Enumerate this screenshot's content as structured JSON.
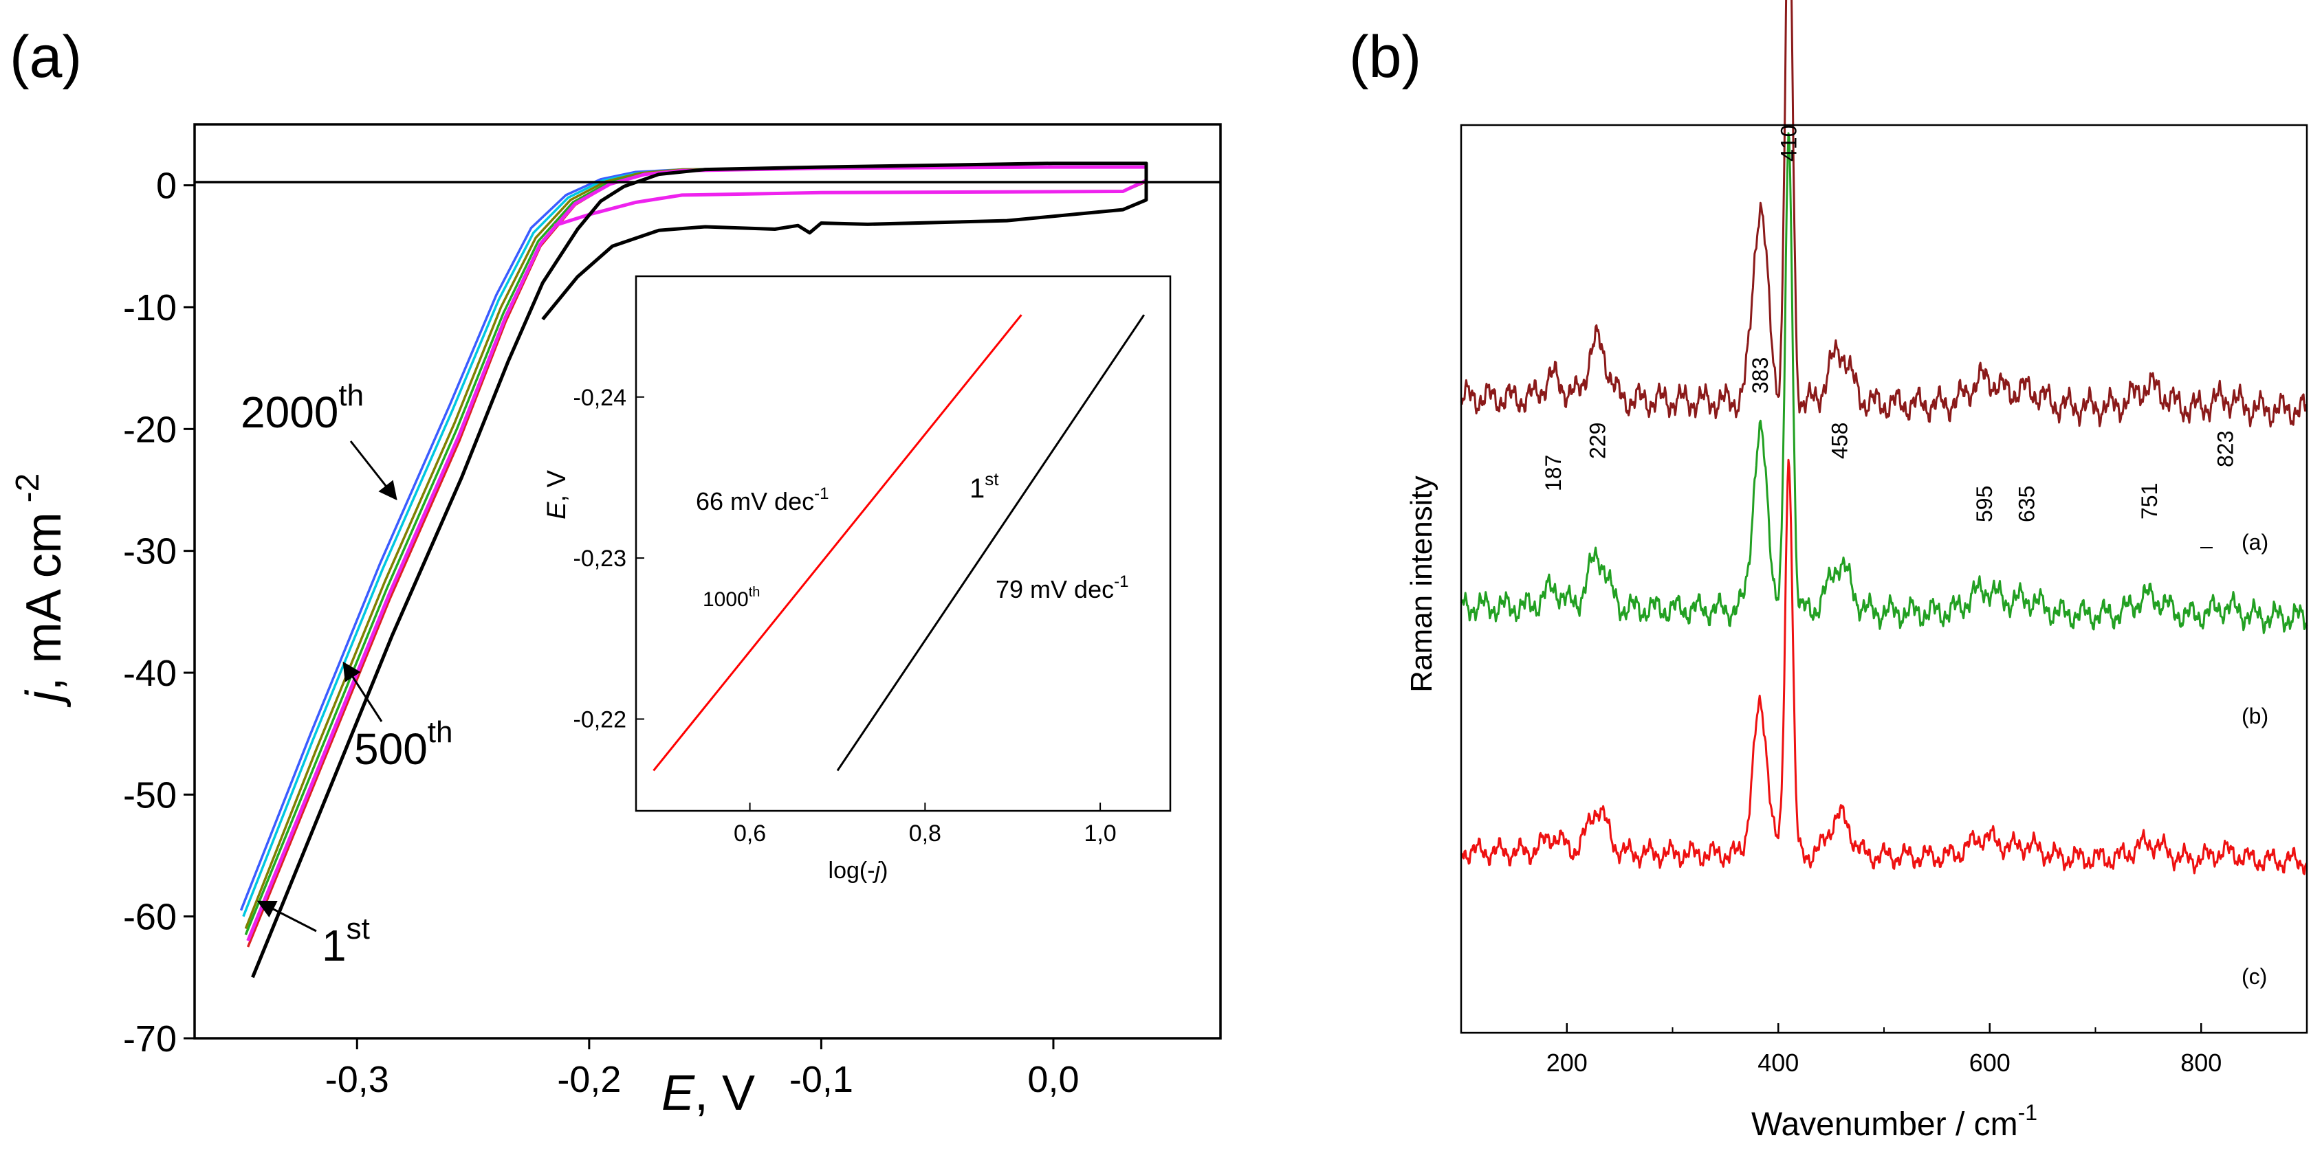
{
  "panels": {
    "a_label": "(a)",
    "b_label": "(b)"
  },
  "chart_data": [
    {
      "panel": "(a)",
      "type": "line",
      "title": "",
      "xlabel_italic": "E",
      "xlabel_rest": ", V",
      "ylabel_italic": "j",
      "ylabel_rest": ", mA cm",
      "ylabel_sup": "-2",
      "xlim": [
        -0.37,
        0.072
      ],
      "ylim": [
        -70,
        5
      ],
      "xticks": [
        -0.3,
        -0.2,
        -0.1,
        0.0
      ],
      "xtick_labels": [
        "-0,3",
        "-0,2",
        "-0,1",
        "0,0"
      ],
      "yticks": [
        0,
        -10,
        -20,
        -30,
        -40,
        -50,
        -60,
        -70
      ],
      "ytick_labels": [
        "0",
        "-10",
        "-20",
        "-30",
        "-40",
        "-50",
        "-60",
        "-70"
      ],
      "zero_line": 0,
      "cycle_labels": [
        {
          "base": "2000",
          "sup": "th"
        },
        {
          "base": "500",
          "sup": "th"
        },
        {
          "base": "1",
          "sup": "st"
        }
      ],
      "series": [
        {
          "name": "blue",
          "color": "#3a5cff",
          "stroke": 3.5,
          "cathodic": [
            [
              -0.35,
              -59.5
            ],
            [
              -0.32,
              -45
            ],
            [
              -0.29,
              -31
            ],
            [
              -0.26,
              -18
            ],
            [
              -0.24,
              -9
            ],
            [
              -0.225,
              -3.5
            ],
            [
              -0.21,
              -0.8
            ],
            [
              -0.195,
              0.5
            ],
            [
              -0.18,
              1.1
            ],
            [
              -0.16,
              1.3
            ],
            [
              -0.1,
              1.4
            ],
            [
              0.0,
              1.5
            ],
            [
              0.04,
              1.5
            ]
          ],
          "return": [
            [
              0.04,
              0.3
            ],
            [
              0.03,
              -0.5
            ],
            [
              -0.1,
              -0.6
            ],
            [
              -0.16,
              -0.8
            ],
            [
              -0.18,
              -1.4
            ],
            [
              -0.2,
              -2.4
            ],
            [
              -0.215,
              -3.3
            ]
          ]
        },
        {
          "name": "cyan",
          "color": "#00c8e0",
          "stroke": 3.5,
          "cathodic": [
            [
              -0.349,
              -60
            ],
            [
              -0.319,
              -45.5
            ],
            [
              -0.289,
              -31.5
            ],
            [
              -0.259,
              -18.5
            ],
            [
              -0.239,
              -9.4
            ],
            [
              -0.224,
              -3.9
            ],
            [
              -0.209,
              -1
            ],
            [
              -0.194,
              0.4
            ],
            [
              -0.179,
              1
            ],
            [
              -0.16,
              1.3
            ],
            [
              -0.1,
              1.4
            ],
            [
              0.0,
              1.5
            ],
            [
              0.04,
              1.5
            ]
          ],
          "return": [
            [
              0.04,
              0.3
            ],
            [
              0.03,
              -0.5
            ],
            [
              -0.1,
              -0.6
            ],
            [
              -0.16,
              -0.8
            ],
            [
              -0.18,
              -1.4
            ],
            [
              -0.2,
              -2.4
            ],
            [
              -0.215,
              -3.3
            ]
          ]
        },
        {
          "name": "olive",
          "color": "#808000",
          "stroke": 3.5,
          "cathodic": [
            [
              -0.348,
              -61
            ],
            [
              -0.318,
              -46.5
            ],
            [
              -0.288,
              -32.5
            ],
            [
              -0.258,
              -19.5
            ],
            [
              -0.238,
              -10
            ],
            [
              -0.223,
              -4.3
            ],
            [
              -0.208,
              -1.2
            ],
            [
              -0.193,
              0.3
            ],
            [
              -0.178,
              1
            ],
            [
              -0.16,
              1.3
            ],
            [
              -0.1,
              1.4
            ],
            [
              0.0,
              1.5
            ],
            [
              0.04,
              1.5
            ]
          ],
          "return": [
            [
              0.04,
              0.3
            ],
            [
              0.03,
              -0.5
            ],
            [
              -0.1,
              -0.6
            ],
            [
              -0.16,
              -0.8
            ],
            [
              -0.18,
              -1.4
            ],
            [
              -0.2,
              -2.4
            ],
            [
              -0.215,
              -3.3
            ]
          ]
        },
        {
          "name": "green",
          "color": "#22aa22",
          "stroke": 3.5,
          "cathodic": [
            [
              -0.348,
              -61.5
            ],
            [
              -0.317,
              -47
            ],
            [
              -0.287,
              -33
            ],
            [
              -0.257,
              -20
            ],
            [
              -0.237,
              -10.5
            ],
            [
              -0.222,
              -4.6
            ],
            [
              -0.207,
              -1.4
            ],
            [
              -0.192,
              0.2
            ],
            [
              -0.177,
              0.9
            ],
            [
              -0.16,
              1.2
            ],
            [
              -0.1,
              1.4
            ],
            [
              0.0,
              1.5
            ],
            [
              0.04,
              1.5
            ]
          ],
          "return": [
            [
              0.04,
              0.3
            ],
            [
              0.03,
              -0.5
            ],
            [
              -0.1,
              -0.6
            ],
            [
              -0.16,
              -0.8
            ],
            [
              -0.18,
              -1.4
            ],
            [
              -0.2,
              -2.4
            ],
            [
              -0.215,
              -3.3
            ]
          ]
        },
        {
          "name": "red",
          "color": "#dd2222",
          "stroke": 3.5,
          "cathodic": [
            [
              -0.347,
              -62.5
            ],
            [
              -0.316,
              -48
            ],
            [
              -0.286,
              -34
            ],
            [
              -0.256,
              -21
            ],
            [
              -0.236,
              -11.2
            ],
            [
              -0.221,
              -5
            ],
            [
              -0.206,
              -1.6
            ],
            [
              -0.191,
              0.1
            ],
            [
              -0.176,
              0.9
            ],
            [
              -0.16,
              1.2
            ],
            [
              -0.1,
              1.4
            ],
            [
              0.0,
              1.5
            ],
            [
              0.04,
              1.5
            ]
          ],
          "return": [
            [
              0.04,
              0.3
            ],
            [
              0.03,
              -0.5
            ],
            [
              -0.1,
              -0.6
            ],
            [
              -0.16,
              -0.8
            ],
            [
              -0.18,
              -1.4
            ],
            [
              -0.2,
              -2.4
            ],
            [
              -0.215,
              -3.3
            ]
          ]
        },
        {
          "name": "magenta",
          "color": "#ee22ee",
          "stroke": 5,
          "cathodic": [
            [
              -0.347,
              -62
            ],
            [
              -0.316,
              -47.5
            ],
            [
              -0.286,
              -33.5
            ],
            [
              -0.256,
              -20.5
            ],
            [
              -0.236,
              -10.8
            ],
            [
              -0.221,
              -4.8
            ],
            [
              -0.206,
              -1.5
            ],
            [
              -0.191,
              0.1
            ],
            [
              -0.176,
              0.9
            ],
            [
              -0.16,
              1.2
            ],
            [
              -0.1,
              1.4
            ],
            [
              0.0,
              1.5
            ],
            [
              0.04,
              1.5
            ]
          ],
          "return": [
            [
              0.04,
              0.4
            ],
            [
              0.03,
              -0.5
            ],
            [
              -0.1,
              -0.6
            ],
            [
              -0.16,
              -0.8
            ],
            [
              -0.18,
              -1.4
            ],
            [
              -0.2,
              -2.4
            ],
            [
              -0.215,
              -3.3
            ]
          ]
        },
        {
          "name": "black",
          "color": "#000000",
          "stroke": 5,
          "cathodic": [
            [
              -0.345,
              -65
            ],
            [
              -0.315,
              -51
            ],
            [
              -0.285,
              -37
            ],
            [
              -0.255,
              -24
            ],
            [
              -0.235,
              -14.5
            ],
            [
              -0.22,
              -8
            ],
            [
              -0.205,
              -3.6
            ],
            [
              -0.195,
              -1.3
            ],
            [
              -0.185,
              -0.1
            ],
            [
              -0.17,
              0.9
            ],
            [
              -0.15,
              1.3
            ],
            [
              -0.1,
              1.5
            ],
            [
              0.0,
              1.8
            ],
            [
              0.04,
              1.8
            ]
          ],
          "return": [
            [
              0.04,
              -1.2
            ],
            [
              0.03,
              -2
            ],
            [
              -0.02,
              -2.9
            ],
            [
              -0.08,
              -3.2
            ],
            [
              -0.1,
              -3.1
            ],
            [
              -0.105,
              -3.9
            ],
            [
              -0.11,
              -3.3
            ],
            [
              -0.12,
              -3.6
            ],
            [
              -0.15,
              -3.4
            ],
            [
              -0.17,
              -3.7
            ],
            [
              -0.19,
              -5
            ],
            [
              -0.205,
              -7.5
            ],
            [
              -0.22,
              -11
            ]
          ]
        }
      ],
      "inset": {
        "xlabel": "log(-",
        "xlabel_italic": "j",
        "xlabel_close": ")",
        "ylabel_italic": "E",
        "ylabel_rest": ", V",
        "xlim": [
          0.47,
          1.08
        ],
        "ylim": [
          -0.2143,
          -0.2475
        ],
        "xticks": [
          0.6,
          0.8,
          1.0
        ],
        "xtick_labels": [
          "0,6",
          "0,8",
          "1,0"
        ],
        "yticks": [
          -0.22,
          -0.23,
          -0.24
        ],
        "ytick_labels": [
          "-0,22",
          "-0,23",
          "-0,24"
        ],
        "series": [
          {
            "name": "1000th",
            "color": "#ff0000",
            "x": [
              0.49,
              0.91
            ],
            "y": [
              -0.2168,
              -0.2451
            ]
          },
          {
            "name": "1st",
            "color": "#000000",
            "x": [
              0.7,
              1.05
            ],
            "y": [
              -0.2168,
              -0.2451
            ]
          }
        ],
        "annotations": [
          {
            "id": "slope-66",
            "text": "66 mV dec",
            "sup": "-1"
          },
          {
            "id": "label-1000th",
            "text": "1000",
            "sup": "th"
          },
          {
            "id": "label-1st",
            "text": "1",
            "sup": "st"
          },
          {
            "id": "slope-79",
            "text": "79 mV dec",
            "sup": "-1"
          }
        ]
      }
    },
    {
      "panel": "(b)",
      "type": "line",
      "title": "",
      "xlabel": "Wavenumber / cm",
      "xlabel_sup": "-1",
      "ylabel": "Raman intensity",
      "xlim": [
        100,
        900
      ],
      "ylim": [
        0,
        1
      ],
      "xticks": [
        200,
        400,
        600,
        800
      ],
      "xtick_labels": [
        "200",
        "400",
        "600",
        "800"
      ],
      "peak_labels": [
        "187",
        "229",
        "383",
        "410",
        "458",
        "595",
        "635",
        "751",
        "823"
      ],
      "peaks": [
        {
          "pos": 410,
          "w": 3.5,
          "amp": 1.0
        },
        {
          "pos": 383,
          "w": 7,
          "amp": 0.37
        },
        {
          "pos": 229,
          "w": 9,
          "amp": 0.11
        },
        {
          "pos": 187,
          "w": 9,
          "amp": 0.04
        },
        {
          "pos": 458,
          "w": 10,
          "amp": 0.1
        },
        {
          "pos": 595,
          "w": 14,
          "amp": 0.05
        },
        {
          "pos": 635,
          "w": 14,
          "amp": 0.03
        },
        {
          "pos": 751,
          "w": 14,
          "amp": 0.04
        },
        {
          "pos": 823,
          "w": 12,
          "amp": 0.02
        }
      ],
      "series": [
        {
          "name": "(a)",
          "color": "#8b1a1a",
          "baseline": 0.3,
          "scale": 0.58
        },
        {
          "name": "(b)",
          "color": "#22a022",
          "baseline": 0.53,
          "scale": 0.52
        },
        {
          "name": "(c)",
          "color": "#ee1111",
          "baseline": 0.8,
          "scale": 0.44
        }
      ]
    }
  ]
}
